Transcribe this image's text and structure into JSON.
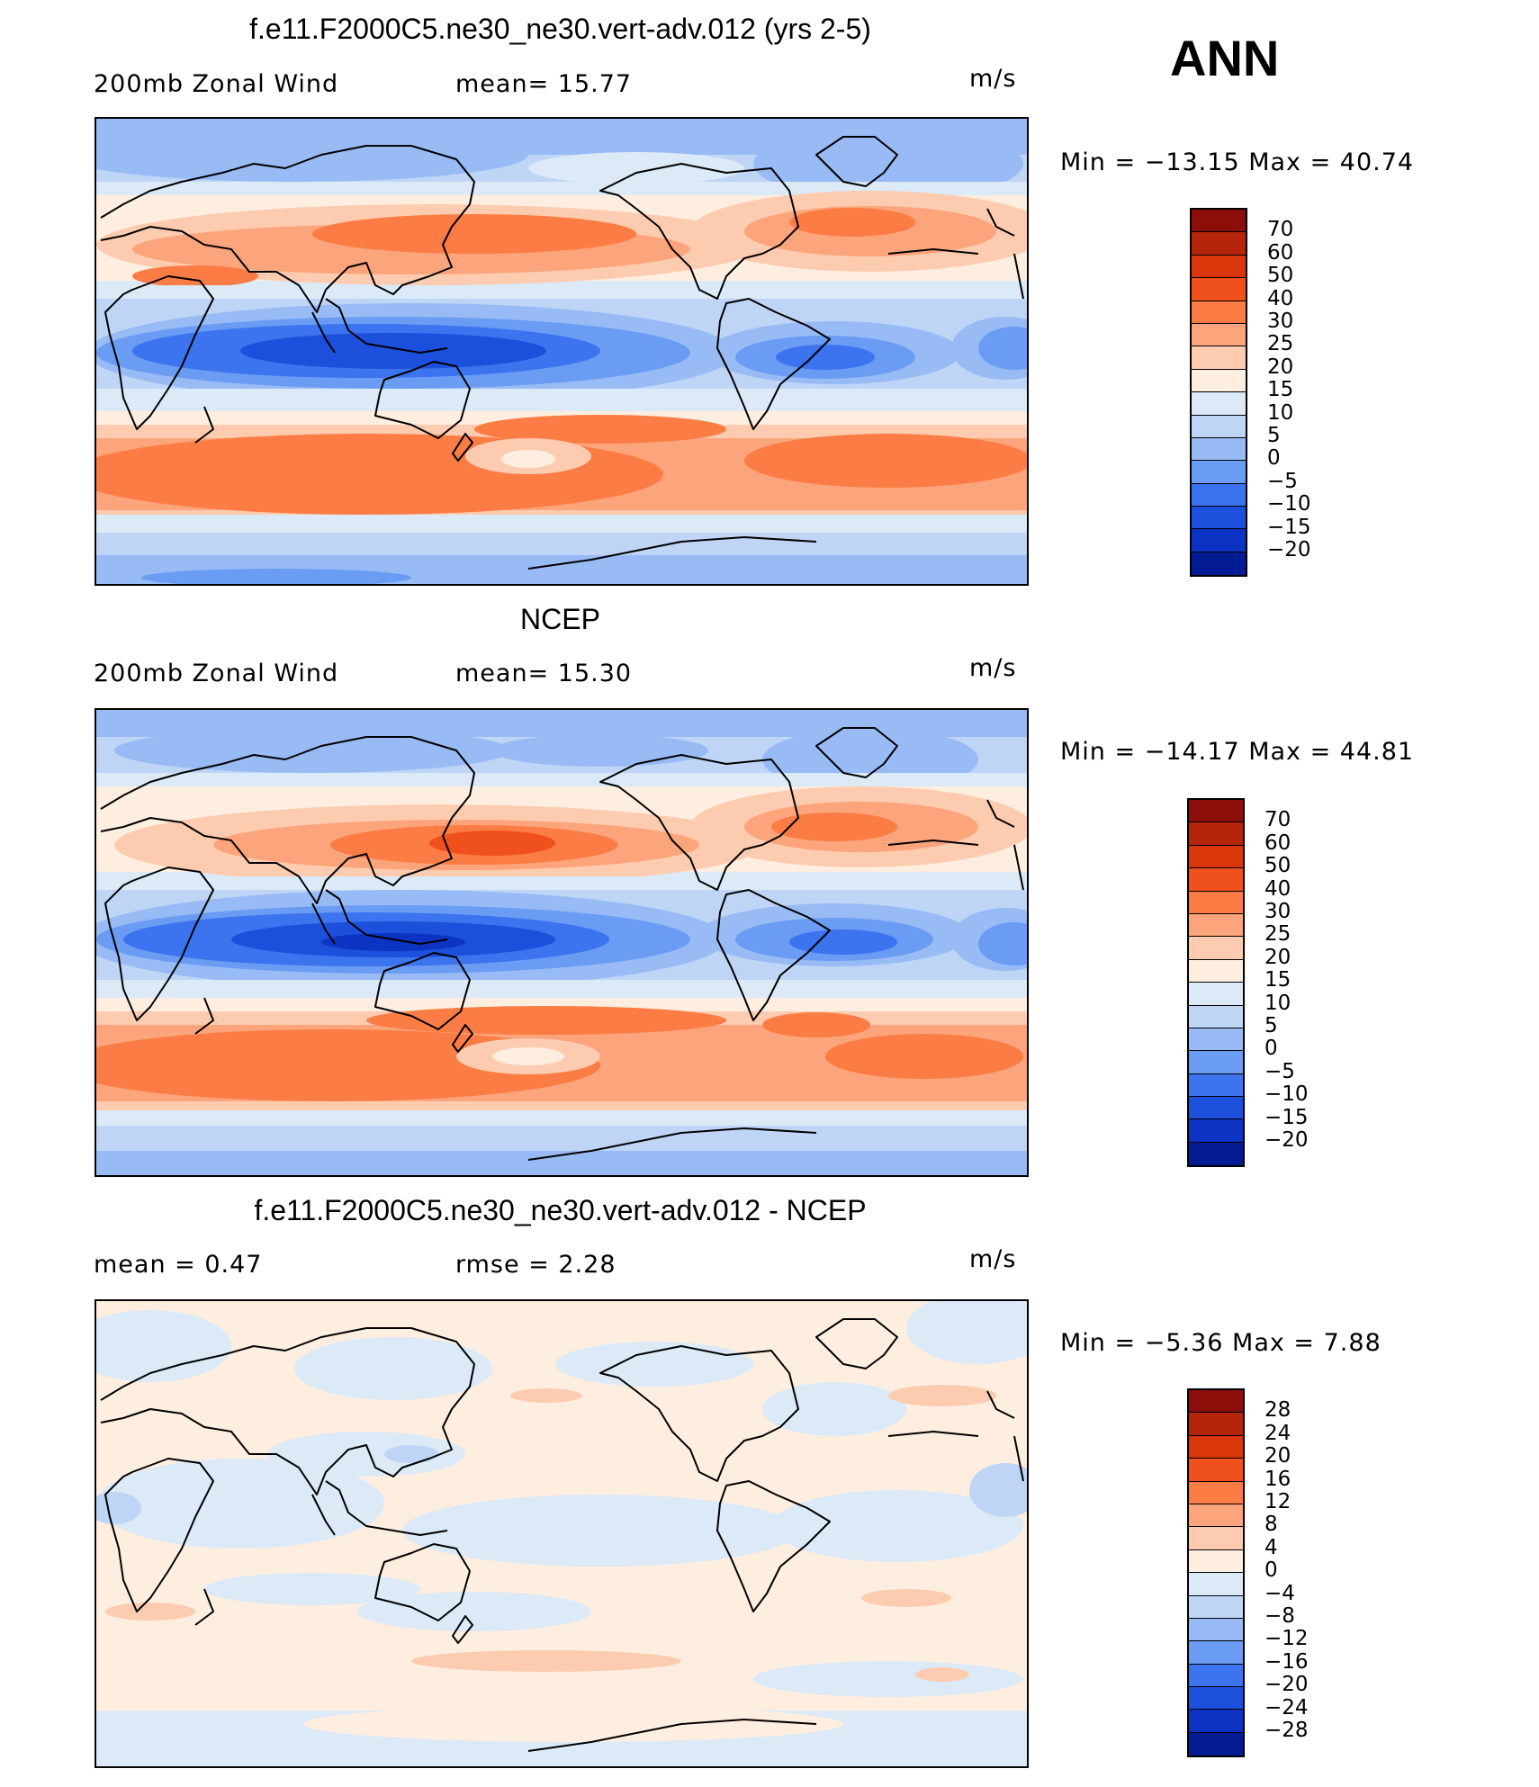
{
  "top_label": "ANN",
  "panels": [
    {
      "title": "f.e11.F2000C5.ne30_ne30.vert-adv.012 (yrs 2-5)",
      "left_text": "200mb  Zonal  Wind",
      "mid_text": "mean=   15.77",
      "units": "m/s",
      "minmax": "Min  =  −13.15  Max  =    40.74",
      "colorbar": {
        "labels": [
          "70",
          "60",
          "50",
          "40",
          "30",
          "25",
          "20",
          "15",
          "10",
          "5",
          "0",
          "−5",
          "−10",
          "−15",
          "−20"
        ],
        "colors": [
          "#8b0e0b",
          "#b4250c",
          "#d9360c",
          "#f0501c",
          "#fb7d45",
          "#fca47b",
          "#fdccb0",
          "#fdeee0",
          "#dce9f7",
          "#bfd5f6",
          "#98bbf5",
          "#6a9cf4",
          "#3c73ef",
          "#1c4fdc",
          "#0c33c4",
          "#031c94"
        ]
      }
    },
    {
      "title": "NCEP",
      "left_text": "200mb  Zonal  Wind",
      "mid_text": "mean=   15.30",
      "units": "m/s",
      "minmax": "Min  =  −14.17  Max  =    44.81",
      "colorbar": {
        "labels": [
          "70",
          "60",
          "50",
          "40",
          "30",
          "25",
          "20",
          "15",
          "10",
          "5",
          "0",
          "−5",
          "−10",
          "−15",
          "−20"
        ],
        "colors": [
          "#8b0e0b",
          "#b4250c",
          "#d9360c",
          "#f0501c",
          "#fb7d45",
          "#fca47b",
          "#fdccb0",
          "#fdeee0",
          "#dce9f7",
          "#bfd5f6",
          "#98bbf5",
          "#6a9cf4",
          "#3c73ef",
          "#1c4fdc",
          "#0c33c4",
          "#031c94"
        ]
      }
    },
    {
      "title": "f.e11.F2000C5.ne30_ne30.vert-adv.012 - NCEP",
      "left_text": "mean  =      0.47",
      "mid_text": "rmse  =      2.28",
      "units": "m/s",
      "minmax": "Min  =     −5.36  Max  =      7.88",
      "colorbar": {
        "labels": [
          "28",
          "24",
          "20",
          "16",
          "12",
          "8",
          "4",
          "0",
          "−4",
          "−8",
          "−12",
          "−16",
          "−20",
          "−24",
          "−28"
        ],
        "colors": [
          "#8b0e0b",
          "#b4250c",
          "#d9360c",
          "#f0501c",
          "#fb7d45",
          "#fca47b",
          "#fdccb0",
          "#fdeee0",
          "#dce9f7",
          "#bfd5f6",
          "#98bbf5",
          "#6a9cf4",
          "#3c73ef",
          "#1c4fdc",
          "#0c33c4",
          "#031c94"
        ]
      }
    }
  ]
}
